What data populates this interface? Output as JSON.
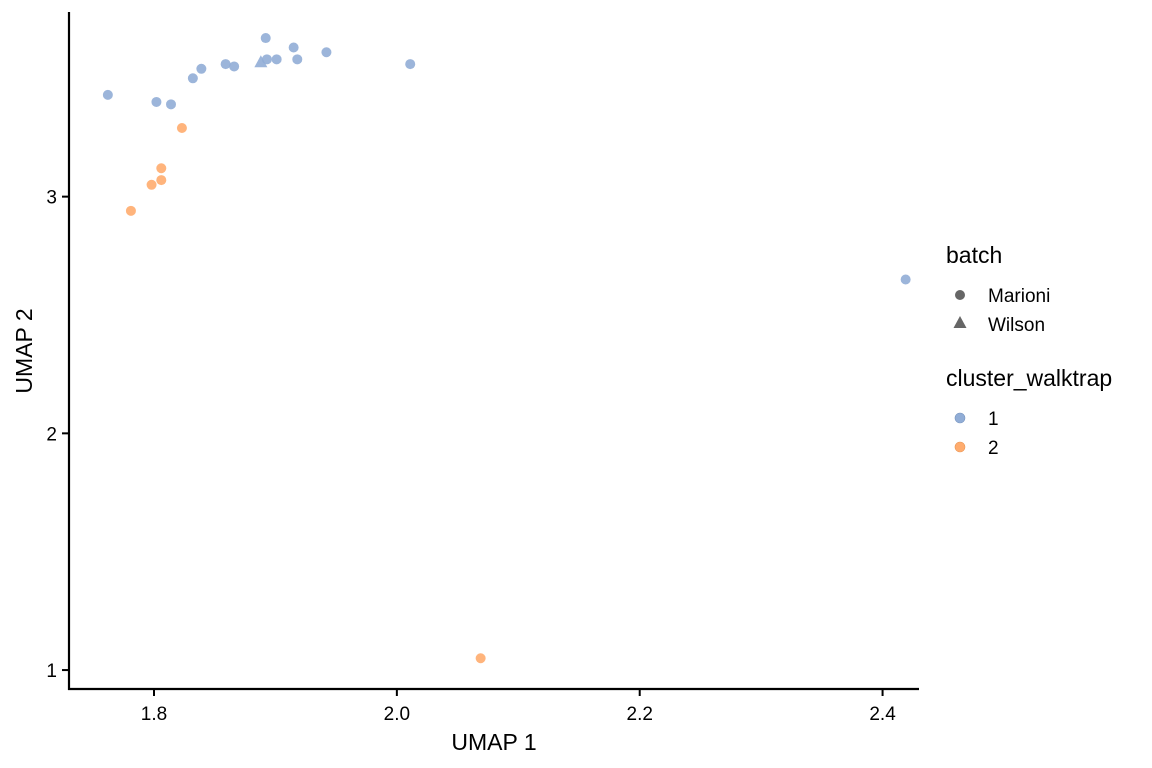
{
  "chart_data": {
    "type": "scatter",
    "xlabel": "UMAP 1",
    "ylabel": "UMAP 2",
    "xlim": [
      1.73,
      2.43
    ],
    "ylim": [
      0.92,
      3.78
    ],
    "x_ticks": [
      1.8,
      2.0,
      2.2,
      2.4
    ],
    "x_tick_labels": [
      "1.8",
      "2.0",
      "2.2",
      "2.4"
    ],
    "y_ticks": [
      1,
      2,
      3
    ],
    "y_tick_labels": [
      "1",
      "2",
      "3"
    ],
    "grid": false,
    "legend_placement": "right",
    "legends": {
      "batch": {
        "title": "batch",
        "entries": [
          {
            "label": "Marioni",
            "shape": "circle"
          },
          {
            "label": "Wilson",
            "shape": "triangle"
          }
        ]
      },
      "cluster": {
        "title": "cluster_walktrap",
        "entries": [
          {
            "label": "1",
            "color": "#91ADD6"
          },
          {
            "label": "2",
            "color": "#FFAC6E"
          }
        ]
      }
    },
    "points": [
      {
        "x": 1.762,
        "y": 3.43,
        "batch": "Marioni",
        "cluster": "1"
      },
      {
        "x": 1.802,
        "y": 3.4,
        "batch": "Marioni",
        "cluster": "1"
      },
      {
        "x": 1.814,
        "y": 3.39,
        "batch": "Marioni",
        "cluster": "1"
      },
      {
        "x": 1.832,
        "y": 3.5,
        "batch": "Marioni",
        "cluster": "1"
      },
      {
        "x": 1.839,
        "y": 3.54,
        "batch": "Marioni",
        "cluster": "1"
      },
      {
        "x": 1.859,
        "y": 3.56,
        "batch": "Marioni",
        "cluster": "1"
      },
      {
        "x": 1.866,
        "y": 3.55,
        "batch": "Marioni",
        "cluster": "1"
      },
      {
        "x": 1.888,
        "y": 3.57,
        "batch": "Wilson",
        "cluster": "1"
      },
      {
        "x": 1.892,
        "y": 3.67,
        "batch": "Marioni",
        "cluster": "1"
      },
      {
        "x": 1.893,
        "y": 3.58,
        "batch": "Marioni",
        "cluster": "1"
      },
      {
        "x": 1.901,
        "y": 3.58,
        "batch": "Marioni",
        "cluster": "1"
      },
      {
        "x": 1.915,
        "y": 3.63,
        "batch": "Marioni",
        "cluster": "1"
      },
      {
        "x": 1.918,
        "y": 3.58,
        "batch": "Marioni",
        "cluster": "1"
      },
      {
        "x": 1.942,
        "y": 3.61,
        "batch": "Marioni",
        "cluster": "1"
      },
      {
        "x": 2.011,
        "y": 3.56,
        "batch": "Marioni",
        "cluster": "1"
      },
      {
        "x": 2.419,
        "y": 2.65,
        "batch": "Marioni",
        "cluster": "1"
      },
      {
        "x": 1.781,
        "y": 2.94,
        "batch": "Marioni",
        "cluster": "2"
      },
      {
        "x": 1.798,
        "y": 3.05,
        "batch": "Marioni",
        "cluster": "2"
      },
      {
        "x": 1.806,
        "y": 3.07,
        "batch": "Marioni",
        "cluster": "2"
      },
      {
        "x": 1.806,
        "y": 3.12,
        "batch": "Marioni",
        "cluster": "2"
      },
      {
        "x": 1.823,
        "y": 3.29,
        "batch": "Marioni",
        "cluster": "2"
      },
      {
        "x": 2.069,
        "y": 1.05,
        "batch": "Marioni",
        "cluster": "2"
      }
    ]
  }
}
